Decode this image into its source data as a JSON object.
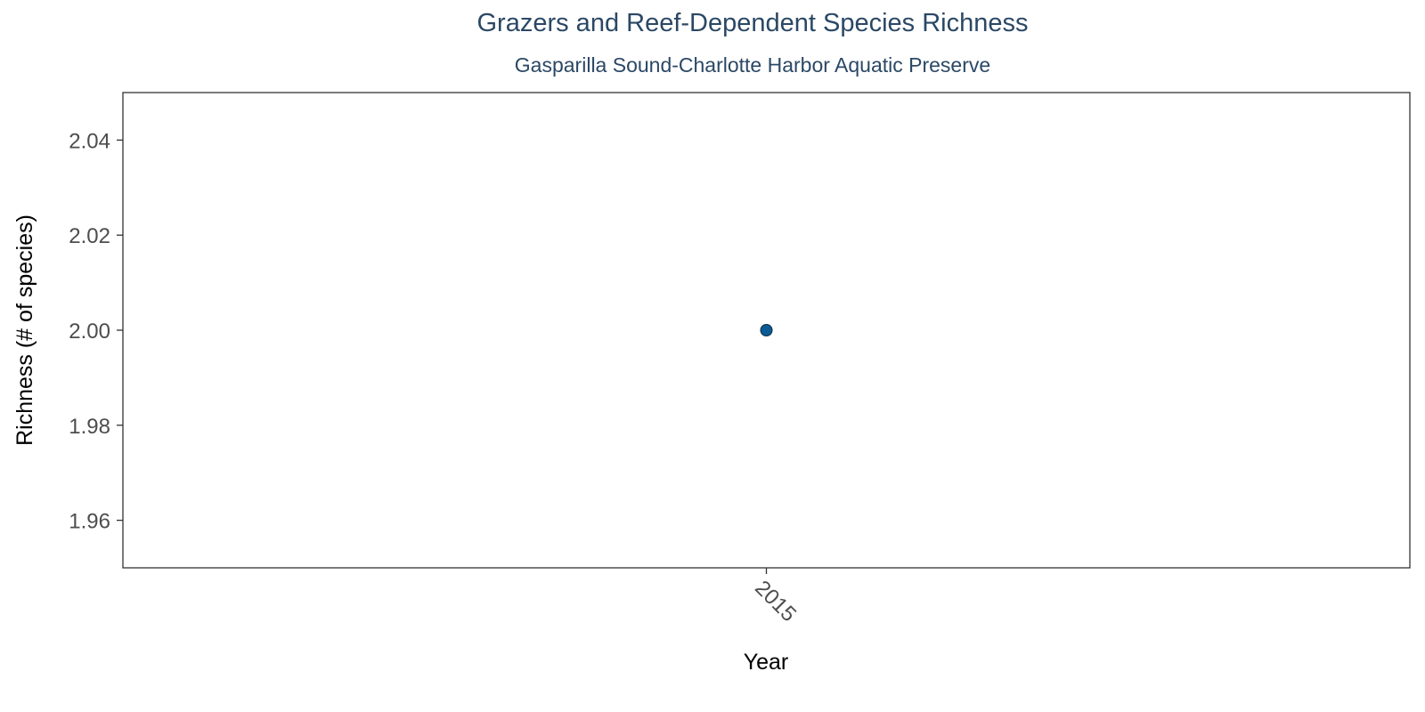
{
  "chart_data": {
    "type": "scatter",
    "title": "Grazers and Reef-Dependent Species Richness",
    "subtitle": "Gasparilla Sound-Charlotte Harbor Aquatic Preserve",
    "xlabel": "Year",
    "ylabel": "Richness (# of species)",
    "x_categories": [
      "2015"
    ],
    "y_ticks": [
      "1.96",
      "1.98",
      "2.00",
      "2.02",
      "2.04"
    ],
    "ylim": [
      1.95,
      2.05
    ],
    "points": [
      {
        "x": "2015",
        "y": 2.0
      }
    ],
    "grid": false,
    "point_color": "#0b5a94"
  }
}
